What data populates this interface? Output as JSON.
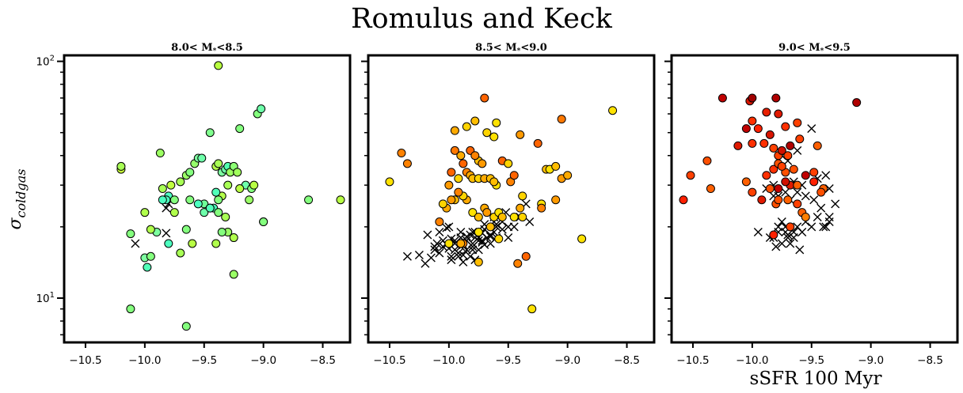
{
  "figure": {
    "title": "Romulus and Keck",
    "ylabel_prefix": "σ",
    "ylabel_sub": "coldgas",
    "xlabel": "sSFR 100 Myr"
  },
  "chart_data": [
    {
      "type": "scatter",
      "title": "8.0< M_* <8.5",
      "title_parts": [
        "8.0< M",
        "*",
        "<8.5"
      ],
      "xlim": [
        -10.68,
        -8.27
      ],
      "ylim": [
        6.5,
        106
      ],
      "yscale": "log",
      "xticks": [
        -10.5,
        -10.0,
        -9.5,
        -9.0,
        -8.5
      ],
      "xtick_labels": [
        "−10.5",
        "−10.0",
        "−9.5",
        "−9.0",
        "−8.5"
      ],
      "yticks": [
        10,
        100
      ],
      "ytick_labels": [
        "10¹",
        "10²"
      ],
      "series": [
        {
          "marker": "circle",
          "x": [
            -9.38,
            -10.2,
            -10.2,
            -10.0,
            -10.0,
            -9.87,
            -9.78,
            -9.65,
            -9.62,
            -9.58,
            -9.55,
            -9.52,
            -9.5,
            -9.45,
            -9.42,
            -9.4,
            -9.38,
            -9.35,
            -9.32,
            -9.3,
            -9.28,
            -9.25,
            -9.22,
            -9.2,
            -9.15,
            -9.1,
            -9.05,
            -9.02,
            -9.0,
            -9.08,
            -9.12,
            -9.3,
            -9.35,
            -9.38,
            -9.4,
            -9.45,
            -9.5,
            -9.55,
            -9.6,
            -9.65,
            -9.7,
            -9.75,
            -9.8,
            -9.85,
            -9.9,
            -9.95,
            -9.98,
            -10.12,
            -9.82,
            -9.75,
            -9.7,
            -9.62,
            -9.38,
            -9.32,
            -9.25,
            -9.3,
            -9.25,
            -8.62,
            -8.35,
            -9.0,
            -9.2,
            -9.8,
            -9.95,
            -9.35,
            -9.65,
            -9.45,
            -9.4,
            -10.12,
            -9.85
          ],
          "y": [
            96,
            35,
            36,
            23,
            14.8,
            41,
            30,
            33,
            34,
            37,
            39,
            39,
            25,
            50,
            24,
            36,
            37,
            34,
            35,
            36,
            34,
            36,
            34,
            52,
            30,
            29,
            60,
            63,
            21,
            30,
            26,
            30,
            27,
            26,
            28,
            24,
            23,
            25,
            17,
            19.5,
            31,
            23,
            27,
            29,
            19,
            19.5,
            13.5,
            18.7,
            26,
            26,
            15.5,
            26,
            23,
            22,
            18,
            19,
            12.6,
            26,
            26,
            21,
            29,
            17,
            15,
            19,
            7.6,
            24,
            17,
            9,
            26
          ],
          "colors": [
            "#b8ff3f",
            "#c8ff3a",
            "#a8ff55",
            "#b0ff4c",
            "#7dffa0",
            "#9cff62",
            "#c0ff40",
            "#9aff66",
            "#84ff7e",
            "#96ff6c",
            "#7dffa0",
            "#6effaa",
            "#6ffd98",
            "#80ff8e",
            "#4cffb8",
            "#b4ff4a",
            "#a8ff55",
            "#7dffa0",
            "#6effaa",
            "#50ffb0",
            "#9cff62",
            "#8cff74",
            "#a0ff5c",
            "#84ff7e",
            "#6effaa",
            "#84ff7e",
            "#84ff7e",
            "#6effaa",
            "#6effaa",
            "#b8ff44",
            "#9aff66",
            "#a8ff55",
            "#b4ff4a",
            "#84ff7e",
            "#50ffb8",
            "#6effaa",
            "#6effaa",
            "#4cffbf",
            "#b8ff44",
            "#84ff7e",
            "#a8ff55",
            "#b0ff4c",
            "#4cffbf",
            "#a8ff55",
            "#7dffa0",
            "#b0ff4c",
            "#50ffb8",
            "#84ff7e",
            "#4cffbf",
            "#84ff7e",
            "#a8ff55",
            "#84ff7e",
            "#84ff7e",
            "#a8ff55",
            "#b0ff4c",
            "#9aff66",
            "#9aff66",
            "#84ff7e",
            "#b8ff44",
            "#84ff7e",
            "#b8ff44",
            "#4cffbf",
            "#84ff7e",
            "#84ff7e",
            "#84ff7e",
            "#50ffb8",
            "#b0ff4c",
            "#84ff7e",
            "#4cffbf"
          ]
        },
        {
          "marker": "x",
          "x": [
            -10.08,
            -9.82,
            -9.82,
            -9.8
          ],
          "y": [
            17,
            18.8,
            24,
            25
          ]
        }
      ]
    },
    {
      "type": "scatter",
      "title": "8.5< M_* <9.0",
      "title_parts": [
        "8.5< M",
        "*",
        "<9.0"
      ],
      "xlim": [
        -10.68,
        -8.27
      ],
      "ylim": [
        6.5,
        106
      ],
      "yscale": "log",
      "xticks": [
        -10.5,
        -10.0,
        -9.5,
        -9.0,
        -8.5
      ],
      "xtick_labels": [
        "−10.5",
        "−10.0",
        "−9.5",
        "−9.0",
        "−8.5"
      ],
      "yticks": [
        10,
        100
      ],
      "ytick_labels": [
        "",
        ""
      ],
      "series": [
        {
          "marker": "circle",
          "x": [
            -9.7,
            -8.62,
            -9.05,
            -9.78,
            -9.6,
            -9.85,
            -9.95,
            -9.68,
            -9.62,
            -9.4,
            -9.25,
            -10.4,
            -10.35,
            -9.82,
            -9.9,
            -9.95,
            -9.75,
            -9.88,
            -9.78,
            -9.72,
            -9.55,
            -9.5,
            -9.18,
            -9.15,
            -9.1,
            -9.05,
            -9.0,
            -10.5,
            -10.0,
            -9.98,
            -9.92,
            -9.85,
            -9.82,
            -9.8,
            -9.75,
            -9.7,
            -9.65,
            -9.6,
            -9.62,
            -9.48,
            -9.45,
            -9.38,
            -9.22,
            -9.1,
            -9.85,
            -9.88,
            -9.92,
            -9.95,
            -9.98,
            -10.02,
            -10.05,
            -9.8,
            -9.75,
            -9.7,
            -9.68,
            -9.62,
            -9.58,
            -9.55,
            -9.45,
            -9.4,
            -9.22,
            -8.88,
            -9.35,
            -9.42,
            -9.58,
            -9.75,
            -9.88,
            -9.9,
            -10.0,
            -10.08,
            -9.75,
            -9.65,
            -9.3,
            -9.38
          ],
          "y": [
            70,
            62,
            57,
            56,
            55,
            53,
            51,
            50,
            48,
            49,
            45,
            41,
            37,
            42,
            40,
            42,
            38,
            37,
            40,
            37,
            38,
            37,
            35,
            35,
            36,
            32,
            33,
            31,
            30,
            34,
            32,
            34,
            33,
            32,
            32,
            32,
            32,
            30,
            31,
            31,
            33,
            27,
            25,
            26,
            26,
            27,
            28,
            26,
            26,
            24,
            25,
            23,
            22,
            24,
            23,
            22,
            23,
            22,
            22,
            24,
            24,
            17.8,
            15,
            14,
            17.8,
            14.2,
            17,
            17,
            17,
            21,
            19,
            20,
            9,
            22
          ],
          "colors": [
            "#ff6400",
            "#ffe200",
            "#ff7800",
            "#ffbd00",
            "#ffe200",
            "#ffd400",
            "#ffaa00",
            "#ffd400",
            "#ffe200",
            "#ff9a00",
            "#ff6400",
            "#ff8200",
            "#ff8200",
            "#ff6400",
            "#ffaa00",
            "#ff7800",
            "#ffbd00",
            "#ff6400",
            "#ff8200",
            "#ff9a00",
            "#ff6400",
            "#ffd400",
            "#ffbd00",
            "#ffe200",
            "#ffbd00",
            "#ff9a00",
            "#ffaa00",
            "#ffe200",
            "#ff9a00",
            "#ff6400",
            "#ffd400",
            "#ff8200",
            "#ffaa00",
            "#ffbd00",
            "#ffd400",
            "#ffaa00",
            "#ffbd00",
            "#ffe200",
            "#ffbd00",
            "#ff8200",
            "#ff6400",
            "#ffd400",
            "#ffe200",
            "#ff9a00",
            "#ffaa00",
            "#ffd400",
            "#ff8200",
            "#ffbd00",
            "#ff9a00",
            "#ffaa00",
            "#ffd400",
            "#ffe200",
            "#ffbd00",
            "#ffaa00",
            "#ff9a00",
            "#ffd400",
            "#ffe200",
            "#ffbd00",
            "#ffe200",
            "#ffaa00",
            "#ff8200",
            "#ffe200",
            "#ff6400",
            "#ff8200",
            "#ffd400",
            "#ffbd00",
            "#ff8200",
            "#ffaa00",
            "#ffe200",
            "#ff8200",
            "#ffe200",
            "#ffbd00",
            "#ffe200",
            "#ffd400"
          ]
        },
        {
          "marker": "x",
          "x": [
            -10.35,
            -10.25,
            -10.2,
            -10.15,
            -10.12,
            -10.1,
            -10.08,
            -10.05,
            -10.05,
            -10.02,
            -10.0,
            -9.98,
            -9.98,
            -9.95,
            -9.95,
            -9.92,
            -9.9,
            -9.9,
            -9.88,
            -9.88,
            -9.85,
            -9.85,
            -9.82,
            -9.82,
            -9.8,
            -9.8,
            -9.78,
            -9.78,
            -9.75,
            -9.75,
            -9.72,
            -9.72,
            -9.7,
            -9.7,
            -9.68,
            -9.68,
            -9.65,
            -9.65,
            -9.62,
            -9.62,
            -9.6,
            -9.6,
            -9.58,
            -9.55,
            -9.55,
            -9.52,
            -9.5,
            -9.45,
            -9.4,
            -9.35,
            -9.32,
            -10.18,
            -10.08,
            -10.0,
            -9.95,
            -9.9,
            -9.85,
            -9.8,
            -9.75,
            -9.7,
            -9.65,
            -9.6,
            -9.72,
            -9.8,
            -9.92,
            -10.02,
            -10.12,
            -9.5,
            -9.62,
            -9.78,
            -9.88,
            -9.98
          ],
          "y": [
            15,
            15.2,
            14,
            14.8,
            16,
            17,
            15.5,
            16.5,
            17.5,
            16.8,
            16.2,
            15,
            17.8,
            16,
            17,
            15.5,
            16.5,
            18,
            15.2,
            16.8,
            16,
            17.5,
            15,
            18.5,
            16.5,
            17,
            19,
            18,
            17.5,
            16,
            18.8,
            17.2,
            19.5,
            16.8,
            18,
            20,
            18.5,
            17,
            19,
            21,
            20,
            18,
            22,
            19.5,
            21,
            23,
            18,
            20,
            22,
            25,
            21,
            18.5,
            19,
            20,
            17.5,
            19,
            18.2,
            19,
            18,
            20.5,
            18.2,
            20.5,
            17.5,
            16,
            15,
            19.8,
            16.5,
            20,
            22,
            14.5,
            14.2,
            14.5
          ]
        }
      ]
    },
    {
      "type": "scatter",
      "title": "9.0< M_* <9.5",
      "title_parts": [
        "9.0< M",
        "*",
        "<9.5"
      ],
      "xlim": [
        -10.68,
        -8.27
      ],
      "ylim": [
        6.5,
        106
      ],
      "yscale": "log",
      "xticks": [
        -10.5,
        -10.0,
        -9.5,
        -9.0,
        -8.5
      ],
      "xtick_labels": [
        "−10.5",
        "−10.0",
        "−9.5",
        "−9.0",
        "−8.5"
      ],
      "yticks": [
        10,
        100
      ],
      "ytick_labels": [
        "",
        ""
      ],
      "series": [
        {
          "marker": "circle",
          "x": [
            -10.25,
            -10.02,
            -10.0,
            -9.8,
            -9.12,
            -9.88,
            -9.78,
            -9.62,
            -10.0,
            -9.95,
            -9.85,
            -9.72,
            -9.68,
            -10.05,
            -9.9,
            -9.78,
            -9.7,
            -10.12,
            -10.0,
            -9.82,
            -9.75,
            -9.6,
            -9.45,
            -9.82,
            -9.78,
            -9.65,
            -10.38,
            -10.52,
            -9.72,
            -9.55,
            -9.48,
            -9.4,
            -9.42,
            -9.48,
            -9.68,
            -9.72,
            -9.78,
            -9.75,
            -9.85,
            -9.88,
            -10.05,
            -10.0,
            -9.92,
            -9.8,
            -9.7,
            -9.62,
            -10.35,
            -10.58,
            -9.78,
            -9.58,
            -9.55,
            -9.62,
            -9.82,
            -9.68
          ],
          "y": [
            70,
            68,
            70,
            70,
            67,
            61,
            60,
            55,
            56,
            52,
            49,
            53,
            44,
            52,
            45,
            40,
            40,
            44,
            45,
            43,
            42,
            47,
            44,
            35,
            37,
            35,
            38,
            33,
            34,
            33,
            34,
            29,
            28,
            31,
            30,
            31,
            29,
            36,
            29,
            33,
            31,
            28,
            26,
            25,
            26,
            25,
            29,
            26,
            26,
            23,
            22,
            30,
            18.5,
            20
          ],
          "colors": [
            "#c00000",
            "#d81500",
            "#a00000",
            "#b00000",
            "#b00000",
            "#e82000",
            "#e01a00",
            "#ff4000",
            "#ff3000",
            "#ff2000",
            "#d81500",
            "#ff3000",
            "#b00000",
            "#c00000",
            "#ff3000",
            "#ff4000",
            "#ff4000",
            "#e01a00",
            "#ff3000",
            "#ff4000",
            "#d01000",
            "#ff4000",
            "#ff6000",
            "#ff3000",
            "#ff5000",
            "#ff5000",
            "#ff5000",
            "#ff4000",
            "#ff5000",
            "#c00000",
            "#ff4000",
            "#ff6000",
            "#ff5000",
            "#ff2000",
            "#e01a00",
            "#d01000",
            "#c00000",
            "#ff4000",
            "#ff5000",
            "#ff3000",
            "#ff6000",
            "#ff4000",
            "#e01a00",
            "#ff5000",
            "#ff6000",
            "#ff4000",
            "#ff6000",
            "#ff2000",
            "#ff5000",
            "#ff6000",
            "#ff8000",
            "#ff6000",
            "#ff2000",
            "#ff4000"
          ]
        },
        {
          "marker": "x",
          "x": [
            -9.5,
            -9.62,
            -9.75,
            -9.7,
            -9.82,
            -9.88,
            -9.65,
            -9.58,
            -9.45,
            -9.38,
            -9.35,
            -9.72,
            -9.78,
            -9.82,
            -9.68,
            -9.62,
            -9.55,
            -9.48,
            -9.42,
            -9.35,
            -9.38,
            -9.72,
            -9.78,
            -9.85,
            -9.95,
            -9.75,
            -9.7,
            -9.65,
            -9.68,
            -9.72,
            -9.78,
            -9.82,
            -9.62,
            -9.58,
            -9.55,
            -9.5,
            -9.45,
            -9.4,
            -9.35,
            -9.3,
            -9.75,
            -9.65,
            -9.6,
            -9.8,
            -9.7
          ],
          "y": [
            52,
            42,
            40,
            38,
            30,
            29,
            31,
            30,
            32,
            33,
            29,
            28,
            27,
            27,
            26,
            28,
            27,
            26,
            24,
            22,
            20,
            20,
            19,
            18,
            19,
            21,
            18,
            19,
            17,
            19,
            20,
            18,
            20,
            19,
            21,
            20,
            22,
            20,
            21,
            25,
            17,
            18,
            16,
            16.5,
            18.5
          ]
        }
      ]
    }
  ]
}
